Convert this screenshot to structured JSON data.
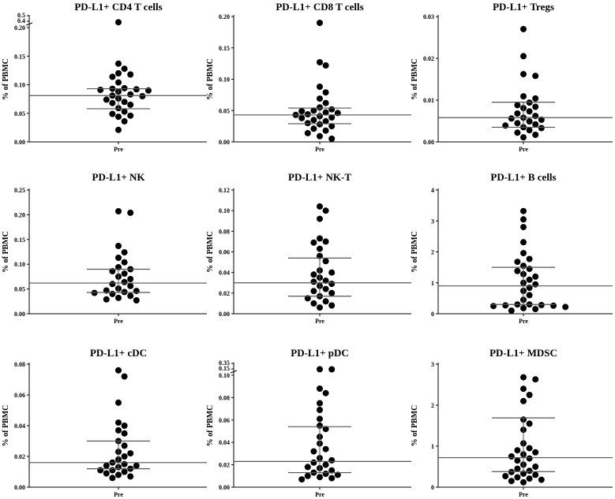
{
  "chart_data": [
    {
      "type": "scatter",
      "title": "PD-L1+ CD4 T cells",
      "ylabel": "% of PBMC",
      "xlabel": "Pre",
      "categories": [
        "Pre"
      ],
      "ylim": [
        0,
        0.2
      ],
      "yticks": [
        0.0,
        0.05,
        0.1,
        0.15,
        0.2
      ],
      "ytick_labels": [
        "0.00",
        "0.05",
        "0.10",
        "0.15",
        "0.20"
      ],
      "axis_break": {
        "labels": [
          "0.5",
          "0.4"
        ]
      },
      "median": 0.081,
      "q1": 0.058,
      "q3": 0.093,
      "values": [
        0.45,
        0.137,
        0.128,
        0.12,
        0.118,
        0.114,
        0.104,
        0.094,
        0.093,
        0.092,
        0.091,
        0.09,
        0.088,
        0.083,
        0.081,
        0.08,
        0.076,
        0.074,
        0.07,
        0.068,
        0.065,
        0.059,
        0.053,
        0.049,
        0.046,
        0.044,
        0.036,
        0.021
      ]
    },
    {
      "type": "scatter",
      "title": "PD-L1+ CD8 T cells",
      "ylabel": "% of PBMC",
      "xlabel": "Pre",
      "categories": [
        "Pre"
      ],
      "ylim": [
        0,
        0.2
      ],
      "yticks": [
        0.0,
        0.05,
        0.1,
        0.15,
        0.2
      ],
      "ytick_labels": [
        "0.00",
        "0.05",
        "0.10",
        "0.15",
        "0.20"
      ],
      "median": 0.043,
      "q1": 0.029,
      "q3": 0.054,
      "values": [
        0.19,
        0.127,
        0.122,
        0.088,
        0.079,
        0.069,
        0.062,
        0.055,
        0.052,
        0.05,
        0.049,
        0.047,
        0.046,
        0.044,
        0.043,
        0.041,
        0.039,
        0.038,
        0.035,
        0.033,
        0.03,
        0.028,
        0.025,
        0.021,
        0.018,
        0.014,
        0.009,
        0.005
      ]
    },
    {
      "type": "scatter",
      "title": "PD-L1+ Tregs",
      "ylabel": "% of PBMC",
      "xlabel": "Pre",
      "categories": [
        "Pre"
      ],
      "ylim": [
        0,
        0.03
      ],
      "yticks": [
        0.0,
        0.01,
        0.02,
        0.03
      ],
      "ytick_labels": [
        "0.00",
        "0.01",
        "0.02",
        "0.03"
      ],
      "median": 0.0058,
      "q1": 0.0035,
      "q3": 0.0095,
      "values": [
        0.027,
        0.0205,
        0.0162,
        0.0158,
        0.0109,
        0.0104,
        0.0094,
        0.0088,
        0.0084,
        0.0081,
        0.0073,
        0.0068,
        0.0062,
        0.0058,
        0.0056,
        0.0053,
        0.0049,
        0.0045,
        0.0042,
        0.0039,
        0.0035,
        0.0033,
        0.0028,
        0.0022,
        0.0017,
        0.0011
      ]
    },
    {
      "type": "scatter",
      "title": "PD-L1+ NK",
      "ylabel": "% of PBMC",
      "xlabel": "Pre",
      "categories": [
        "Pre"
      ],
      "ylim": [
        0,
        0.25
      ],
      "yticks": [
        0.0,
        0.05,
        0.1,
        0.15,
        0.2,
        0.25
      ],
      "ytick_labels": [
        "0.00",
        "0.05",
        "0.10",
        "0.15",
        "0.20",
        "0.25"
      ],
      "median": 0.062,
      "q1": 0.043,
      "q3": 0.09,
      "values": [
        0.207,
        0.204,
        0.137,
        0.124,
        0.113,
        0.104,
        0.094,
        0.09,
        0.086,
        0.081,
        0.075,
        0.07,
        0.064,
        0.06,
        0.056,
        0.051,
        0.047,
        0.046,
        0.044,
        0.042,
        0.04,
        0.036,
        0.032,
        0.029,
        0.027
      ]
    },
    {
      "type": "scatter",
      "title": "PD-L1+ NK-T",
      "ylabel": "% of PBMC",
      "xlabel": "Pre",
      "categories": [
        "Pre"
      ],
      "ylim": [
        0,
        0.12
      ],
      "yticks": [
        0.0,
        0.02,
        0.04,
        0.06,
        0.08,
        0.1,
        0.12
      ],
      "ytick_labels": [
        "0.00",
        "0.02",
        "0.04",
        "0.06",
        "0.08",
        "0.10",
        "0.12"
      ],
      "median": 0.03,
      "q1": 0.017,
      "q3": 0.054,
      "values": [
        0.104,
        0.1,
        0.092,
        0.073,
        0.07,
        0.069,
        0.063,
        0.056,
        0.051,
        0.042,
        0.04,
        0.038,
        0.035,
        0.032,
        0.031,
        0.029,
        0.027,
        0.024,
        0.022,
        0.02,
        0.017,
        0.015,
        0.012,
        0.01,
        0.008,
        0.006
      ]
    },
    {
      "type": "scatter",
      "title": "PD-L1+ B cells",
      "ylabel": "% of PBMC",
      "xlabel": "Pre",
      "categories": [
        "Pre"
      ],
      "ylim": [
        0,
        4
      ],
      "yticks": [
        0,
        1,
        2,
        3,
        4
      ],
      "ytick_labels": [
        "0",
        "1",
        "2",
        "3",
        "4"
      ],
      "median": 0.9,
      "q1": 0.3,
      "q3": 1.5,
      "values": [
        3.32,
        3.05,
        2.8,
        2.31,
        1.96,
        1.77,
        1.68,
        1.55,
        1.45,
        1.38,
        1.28,
        1.2,
        1.1,
        1.0,
        0.95,
        0.84,
        0.74,
        0.6,
        0.45,
        0.3,
        0.3,
        0.28,
        0.27,
        0.26,
        0.25,
        0.22,
        0.18,
        0.15,
        0.1
      ]
    },
    {
      "type": "scatter",
      "title": "PD-L1+ cDC",
      "ylabel": "% of PBMC",
      "xlabel": "Pre",
      "categories": [
        "Pre"
      ],
      "ylim": [
        0,
        0.08
      ],
      "yticks": [
        0.0,
        0.02,
        0.04,
        0.06,
        0.08
      ],
      "ytick_labels": [
        "0.00",
        "0.02",
        "0.04",
        "0.06",
        "0.08"
      ],
      "median": 0.016,
      "q1": 0.012,
      "q3": 0.03,
      "values": [
        0.076,
        0.072,
        0.055,
        0.042,
        0.04,
        0.037,
        0.035,
        0.03,
        0.027,
        0.023,
        0.022,
        0.02,
        0.018,
        0.016,
        0.015,
        0.014,
        0.014,
        0.013,
        0.012,
        0.011,
        0.011,
        0.01,
        0.009,
        0.008,
        0.007,
        0.006
      ]
    },
    {
      "type": "scatter",
      "title": "PD-L1+ pDC",
      "ylabel": "% of PBMC",
      "xlabel": "Pre",
      "categories": [
        "Pre"
      ],
      "ylim": [
        0,
        0.1
      ],
      "yticks": [
        0.0,
        0.02,
        0.04,
        0.06,
        0.08,
        0.1
      ],
      "ytick_labels": [
        "0.00",
        "0.02",
        "0.04",
        "0.06",
        "0.08",
        "0.10"
      ],
      "axis_break": {
        "labels": [
          "0.35",
          "0.15"
        ]
      },
      "median": 0.023,
      "q1": 0.013,
      "q3": 0.054,
      "values": [
        0.34,
        0.32,
        0.088,
        0.084,
        0.075,
        0.069,
        0.061,
        0.055,
        0.052,
        0.045,
        0.039,
        0.034,
        0.032,
        0.026,
        0.024,
        0.022,
        0.02,
        0.018,
        0.017,
        0.015,
        0.013,
        0.012,
        0.011,
        0.01,
        0.009,
        0.008,
        0.007
      ]
    },
    {
      "type": "scatter",
      "title": "PD-L1+ MDSC",
      "ylabel": "% of PBMC",
      "xlabel": "Pre",
      "categories": [
        "Pre"
      ],
      "ylim": [
        0,
        3
      ],
      "yticks": [
        0,
        1,
        2,
        3
      ],
      "ytick_labels": [
        "0",
        "1",
        "2",
        "3"
      ],
      "median": 0.72,
      "q1": 0.38,
      "q3": 1.69,
      "values": [
        2.68,
        2.63,
        2.4,
        2.25,
        2.1,
        1.65,
        1.55,
        1.4,
        1.07,
        0.95,
        0.9,
        0.85,
        0.8,
        0.75,
        0.7,
        0.65,
        0.55,
        0.5,
        0.45,
        0.4,
        0.37,
        0.33,
        0.3,
        0.27,
        0.24,
        0.21,
        0.18,
        0.15,
        0.12
      ]
    }
  ]
}
